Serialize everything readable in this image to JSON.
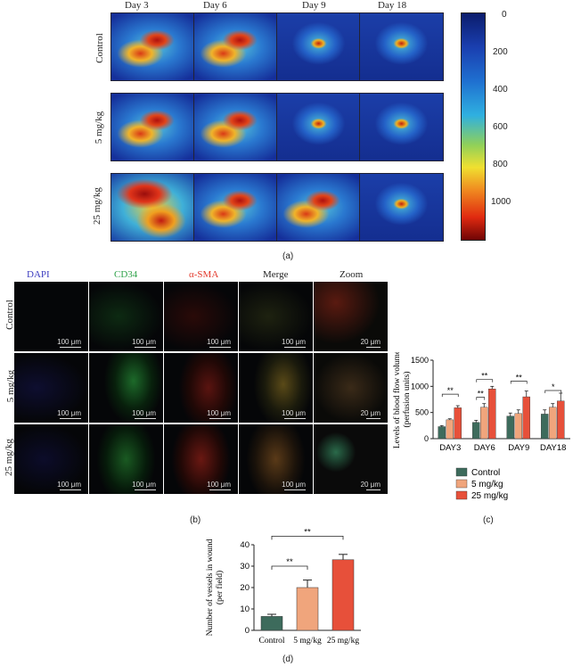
{
  "panel_a": {
    "days": [
      "Day 3",
      "Day 6",
      "Day 9",
      "Day 18"
    ],
    "rows": [
      "Control",
      "5 mg/kg",
      "25 mg/kg"
    ],
    "colorbar_ticks": [
      "0",
      "200",
      "400",
      "600",
      "800",
      "1000"
    ],
    "label": "(a)"
  },
  "panel_b": {
    "channels": [
      "DAPI",
      "CD34",
      "α-SMA",
      "Merge",
      "Zoom"
    ],
    "rows": [
      "Control",
      "5 mg/kg",
      "25 mg/kg"
    ],
    "scale_main": "100 μm",
    "scale_zoom": "20 μm",
    "label": "(b)"
  },
  "chart_data": [
    {
      "type": "bar",
      "id": "blood-flow",
      "categories": [
        "DAY3",
        "DAY6",
        "DAY9",
        "DAY18"
      ],
      "series": [
        {
          "name": "Control",
          "values": [
            230,
            310,
            430,
            470
          ],
          "errors": [
            20,
            40,
            60,
            80
          ]
        },
        {
          "name": "5 mg/kg",
          "values": [
            360,
            600,
            480,
            600
          ],
          "errors": [
            20,
            70,
            70,
            70
          ]
        },
        {
          "name": "25 mg/kg",
          "values": [
            590,
            950,
            800,
            720
          ],
          "errors": [
            40,
            50,
            110,
            150
          ]
        }
      ],
      "ylabel": "Levels of blood flow volume\n(perfusion units)",
      "yticks": [
        0,
        500,
        1000,
        1500
      ],
      "ylim": [
        0,
        1500
      ],
      "significance": [
        "**",
        "**",
        "**",
        "**",
        "*"
      ],
      "legend_position": "bottom",
      "label": "(c)"
    },
    {
      "type": "bar",
      "id": "vessels",
      "categories": [
        "Control",
        "5 mg/kg",
        "25 mg/kg"
      ],
      "values": [
        6.5,
        20,
        33
      ],
      "errors": [
        1,
        3.5,
        2.5
      ],
      "ylabel": "Number of vessels in wound\n(per field)",
      "yticks": [
        0,
        10,
        20,
        30,
        40
      ],
      "ylim": [
        0,
        40
      ],
      "significance": [
        "**",
        "**"
      ],
      "label": "(d)"
    }
  ],
  "colors": {
    "control": "#3d6b5c",
    "low": "#f0a57c",
    "high": "#e7503a",
    "dapi": "#3b3bbf",
    "cd34": "#2fa24a",
    "sma": "#e33b2e"
  }
}
